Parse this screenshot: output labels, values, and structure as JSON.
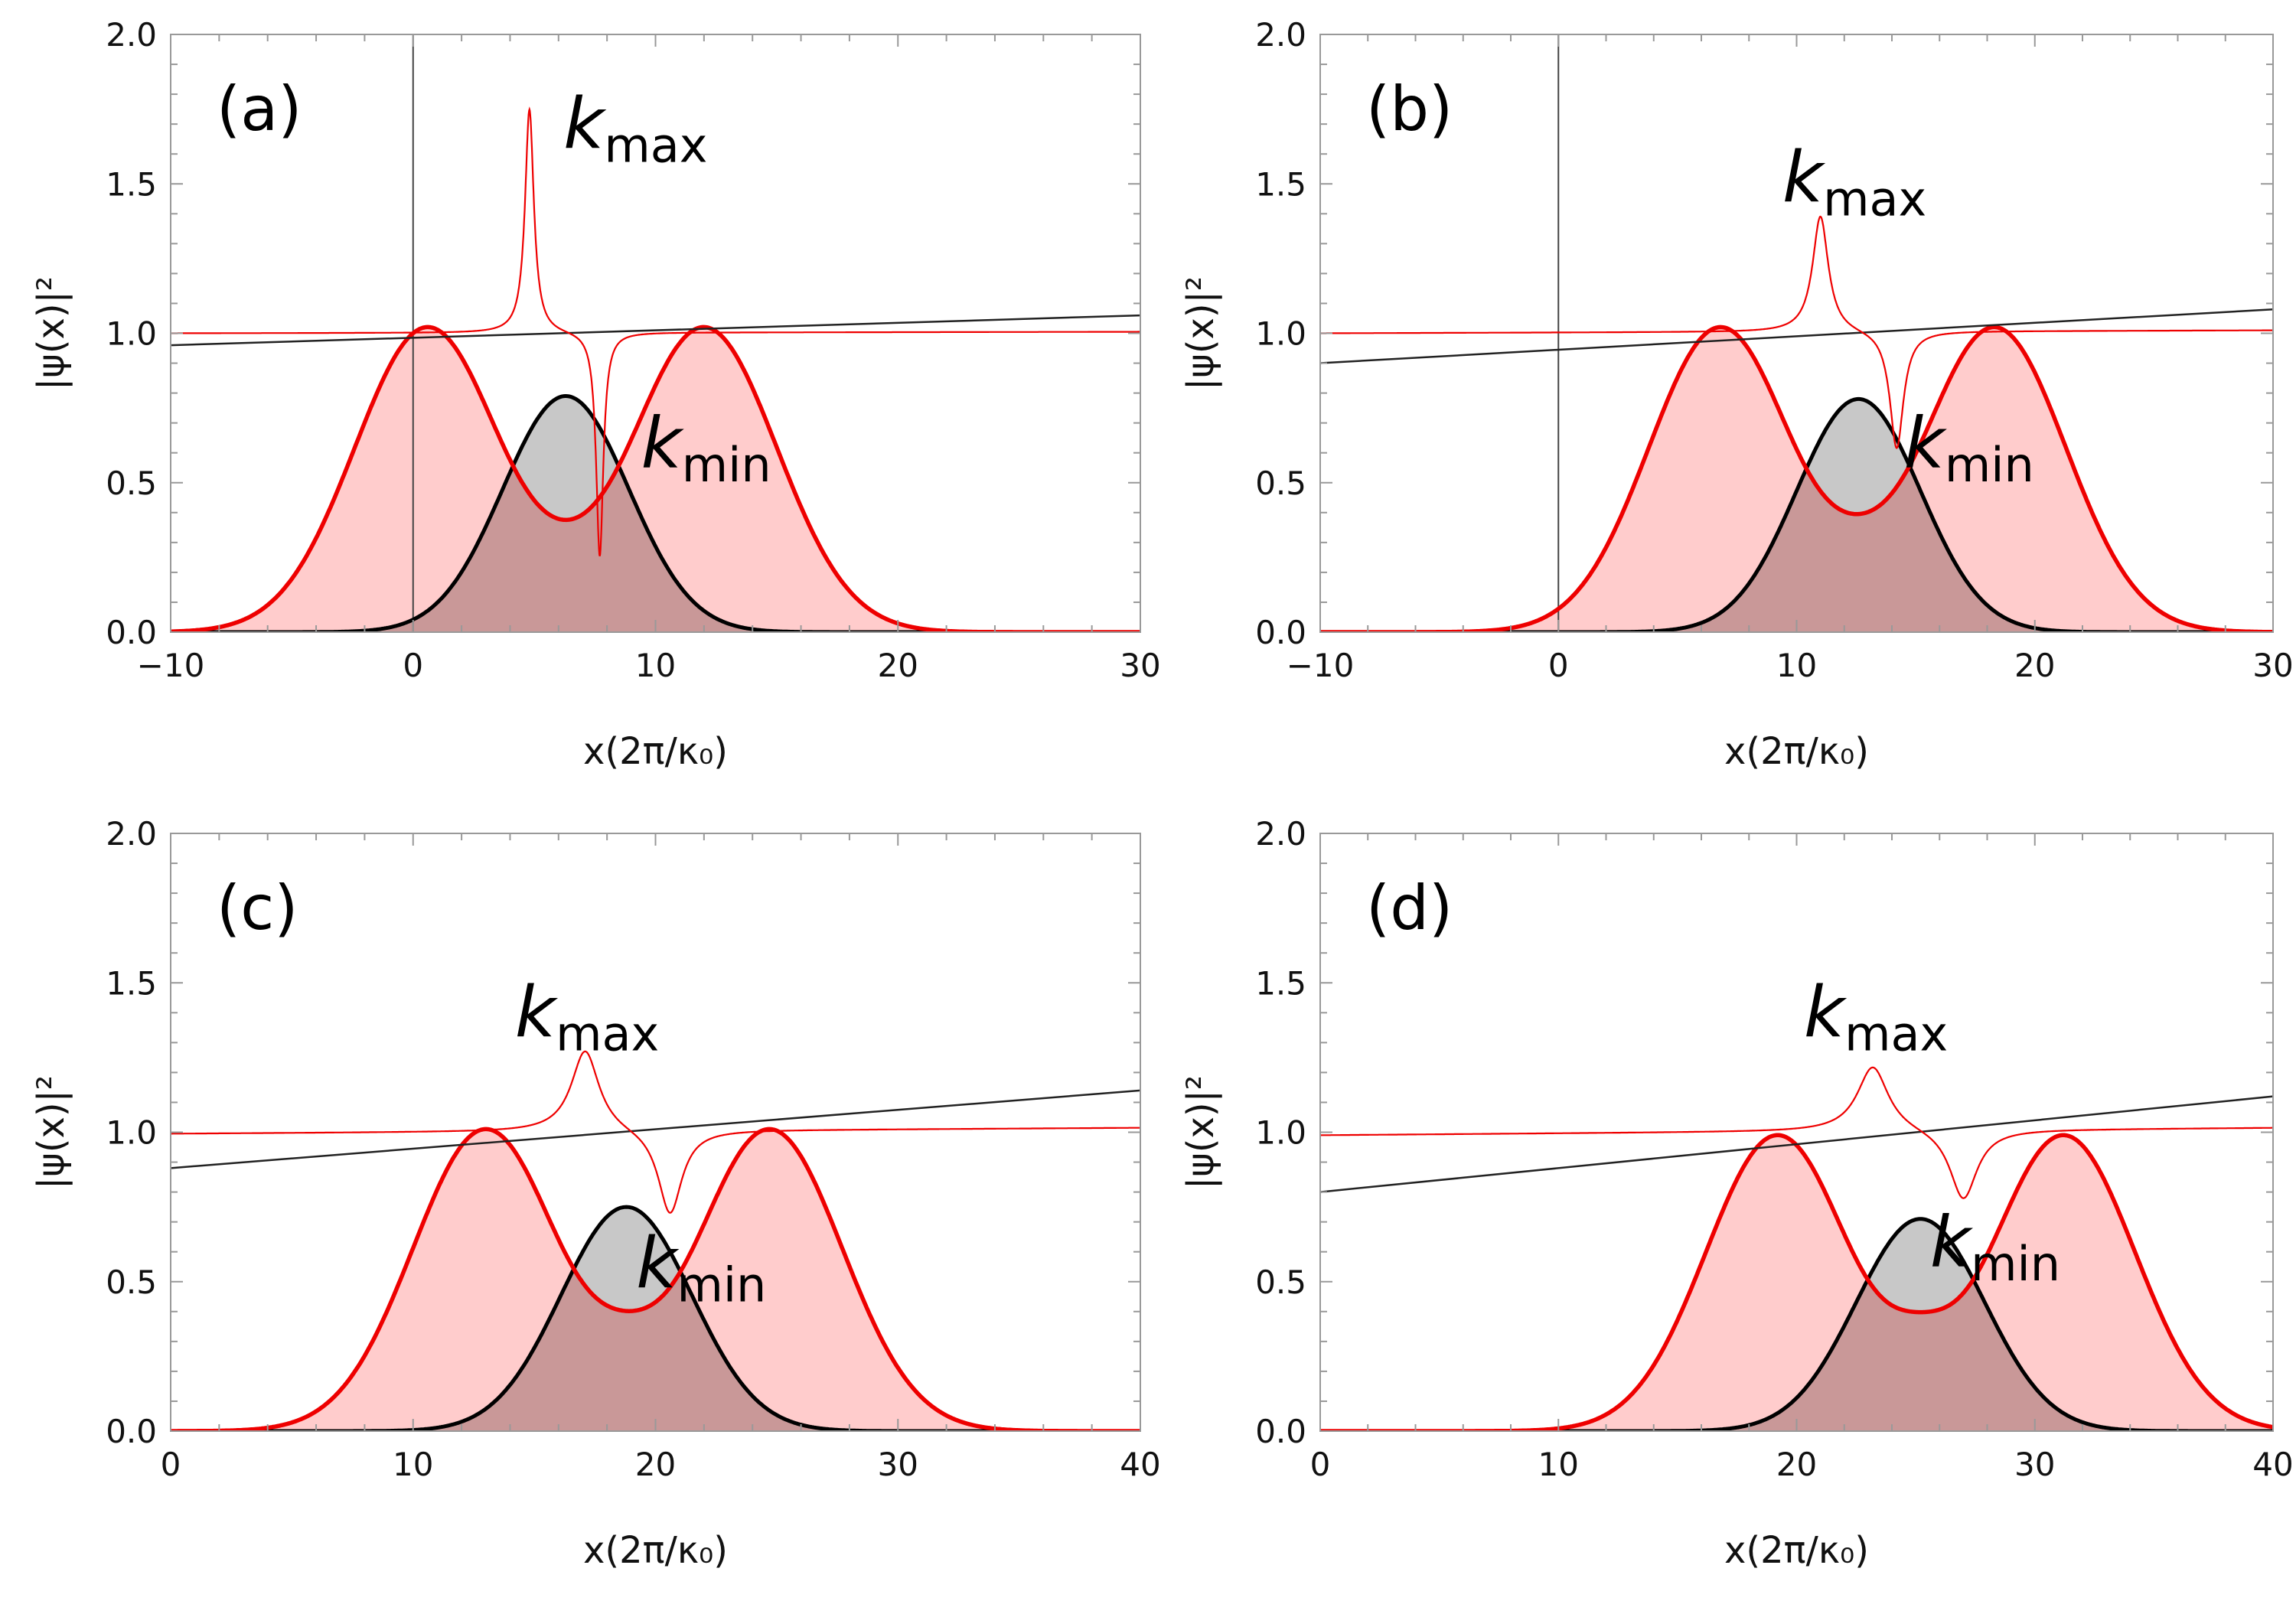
{
  "colors": {
    "red_curve": "#ee0000",
    "red_fill": "#ffcccc",
    "black_curve": "#000000",
    "gray_fill": "#c8c8c8",
    "overlap_fill": "#c99898",
    "frame": "#999999",
    "axis_text": "#111111"
  },
  "chart_data": [
    {
      "type": "line",
      "panel_label": "(a)",
      "xlabel": "x(2π/κ₀)",
      "ylabel": "|ψ(x)|²",
      "xlim": [
        -10,
        30
      ],
      "ylim": [
        0,
        2
      ],
      "xticks": [
        -10,
        0,
        10,
        20,
        30
      ],
      "xtick_labels": [
        "−10",
        "0",
        "10",
        "20",
        "30"
      ],
      "yticks": [
        0,
        0.5,
        1,
        1.5,
        2
      ],
      "ytick_labels": [
        "0.0",
        "0.5",
        "1.0",
        "1.5",
        "2.0"
      ],
      "vline_x": 0,
      "series": [
        {
          "name": "red packet (left)",
          "role": "red_packet",
          "center": 0.6,
          "amplitude": 1.02,
          "width": 3.0
        },
        {
          "name": "red packet (right)",
          "role": "red_packet",
          "center": 12.0,
          "amplitude": 1.02,
          "width": 3.0
        },
        {
          "name": "black packet",
          "role": "black_packet",
          "center": 6.3,
          "amplitude": 0.79,
          "width": 2.6
        },
        {
          "name": "red interference (sum)",
          "role": "red_sum",
          "center": 6.3,
          "dip_value": 0.06
        },
        {
          "name": "black linear",
          "role": "line",
          "x": [
            -10,
            30
          ],
          "y": [
            0.96,
            1.06
          ]
        },
        {
          "name": "local wavenumber",
          "role": "k_curve",
          "baseline_left": 1.0,
          "baseline_right": 1.005,
          "peak_x": 4.8,
          "peak_y": 1.75,
          "peak_width": 0.22,
          "dip_x": 7.7,
          "dip_y": 0.25,
          "dip_width": 0.18
        }
      ],
      "annotations": {
        "kmax": {
          "base": "k",
          "sub": "max",
          "x": 6.2,
          "y": 1.62
        },
        "kmin": {
          "base": "k",
          "sub": "min",
          "x": 9.4,
          "y": 0.55
        }
      }
    },
    {
      "type": "line",
      "panel_label": "(b)",
      "xlabel": "x(2π/κ₀)",
      "ylabel": "|ψ(x)|²",
      "xlim": [
        -10,
        30
      ],
      "ylim": [
        0,
        2
      ],
      "xticks": [
        -10,
        0,
        10,
        20,
        30
      ],
      "xtick_labels": [
        "−10",
        "0",
        "10",
        "20",
        "30"
      ],
      "yticks": [
        0,
        0.5,
        1,
        1.5,
        2
      ],
      "ytick_labels": [
        "0.0",
        "0.5",
        "1.0",
        "1.5",
        "2.0"
      ],
      "vline_x": 0,
      "series": [
        {
          "name": "red packet (left)",
          "role": "red_packet",
          "center": 6.8,
          "amplitude": 1.02,
          "width": 3.0
        },
        {
          "name": "red packet (right)",
          "role": "red_packet",
          "center": 18.3,
          "amplitude": 1.02,
          "width": 3.0
        },
        {
          "name": "black packet",
          "role": "black_packet",
          "center": 12.6,
          "amplitude": 0.78,
          "width": 2.6
        },
        {
          "name": "red interference (sum)",
          "role": "red_sum",
          "center": 12.6,
          "dip_value": 0.09
        },
        {
          "name": "black linear",
          "role": "line",
          "x": [
            -10,
            30
          ],
          "y": [
            0.9,
            1.08
          ]
        },
        {
          "name": "local wavenumber",
          "role": "k_curve",
          "baseline_left": 1.0,
          "baseline_right": 1.01,
          "peak_x": 11.0,
          "peak_y": 1.39,
          "peak_width": 0.4,
          "dip_x": 14.2,
          "dip_y": 0.61,
          "dip_width": 0.35
        }
      ],
      "annotations": {
        "kmax": {
          "base": "k",
          "sub": "max",
          "x": 9.4,
          "y": 1.44
        },
        "kmin": {
          "base": "k",
          "sub": "min",
          "x": 14.5,
          "y": 0.55
        }
      }
    },
    {
      "type": "line",
      "panel_label": "(c)",
      "xlabel": "x(2π/κ₀)",
      "ylabel": "|ψ(x)|²",
      "xlim": [
        0,
        40
      ],
      "ylim": [
        0,
        2
      ],
      "xticks": [
        0,
        10,
        20,
        30,
        40
      ],
      "xtick_labels": [
        "0",
        "10",
        "20",
        "30",
        "40"
      ],
      "yticks": [
        0,
        0.5,
        1,
        1.5,
        2
      ],
      "ytick_labels": [
        "0.0",
        "0.5",
        "1.0",
        "1.5",
        "2.0"
      ],
      "vline_x": null,
      "series": [
        {
          "name": "red packet (left)",
          "role": "red_packet",
          "center": 13.0,
          "amplitude": 1.01,
          "width": 3.0
        },
        {
          "name": "red packet (right)",
          "role": "red_packet",
          "center": 24.7,
          "amplitude": 1.01,
          "width": 3.0
        },
        {
          "name": "black packet",
          "role": "black_packet",
          "center": 18.8,
          "amplitude": 0.75,
          "width": 2.7
        },
        {
          "name": "red interference (sum)",
          "role": "red_sum",
          "center": 18.8,
          "dip_value": 0.12
        },
        {
          "name": "black linear",
          "role": "line",
          "x": [
            0,
            40
          ],
          "y": [
            0.88,
            1.14
          ]
        },
        {
          "name": "local wavenumber",
          "role": "k_curve",
          "baseline_left": 0.995,
          "baseline_right": 1.015,
          "peak_x": 17.1,
          "peak_y": 1.27,
          "peak_width": 0.7,
          "dip_x": 20.6,
          "dip_y": 0.72,
          "dip_width": 0.6
        }
      ],
      "annotations": {
        "kmax": {
          "base": "k",
          "sub": "max",
          "x": 14.2,
          "y": 1.32
        },
        "kmin": {
          "base": "k",
          "sub": "min",
          "x": 19.2,
          "y": 0.48
        }
      }
    },
    {
      "type": "line",
      "panel_label": "(d)",
      "xlabel": "x(2π/κ₀)",
      "ylabel": "|ψ(x)|²",
      "xlim": [
        0,
        40
      ],
      "ylim": [
        0,
        2
      ],
      "xticks": [
        0,
        10,
        20,
        30,
        40
      ],
      "xtick_labels": [
        "0",
        "10",
        "20",
        "30",
        "40"
      ],
      "yticks": [
        0,
        0.5,
        1,
        1.5,
        2
      ],
      "ytick_labels": [
        "0.0",
        "0.5",
        "1.0",
        "1.5",
        "2.0"
      ],
      "vline_x": null,
      "series": [
        {
          "name": "red packet (left)",
          "role": "red_packet",
          "center": 19.2,
          "amplitude": 0.99,
          "width": 3.0
        },
        {
          "name": "red packet (right)",
          "role": "red_packet",
          "center": 31.2,
          "amplitude": 0.99,
          "width": 3.0
        },
        {
          "name": "black packet",
          "role": "black_packet",
          "center": 25.2,
          "amplitude": 0.71,
          "width": 2.7
        },
        {
          "name": "red interference (sum)",
          "role": "red_sum",
          "center": 25.2,
          "dip_value": 0.15
        },
        {
          "name": "black linear",
          "role": "line",
          "x": [
            0,
            40
          ],
          "y": [
            0.8,
            1.12
          ]
        },
        {
          "name": "local wavenumber",
          "role": "k_curve",
          "baseline_left": 0.99,
          "baseline_right": 1.015,
          "peak_x": 23.2,
          "peak_y": 1.21,
          "peak_width": 0.8,
          "dip_x": 27.0,
          "dip_y": 0.77,
          "dip_width": 0.7
        }
      ],
      "annotations": {
        "kmax": {
          "base": "k",
          "sub": "max",
          "x": 20.3,
          "y": 1.32
        },
        "kmin": {
          "base": "k",
          "sub": "min",
          "x": 25.6,
          "y": 0.55
        }
      }
    }
  ]
}
